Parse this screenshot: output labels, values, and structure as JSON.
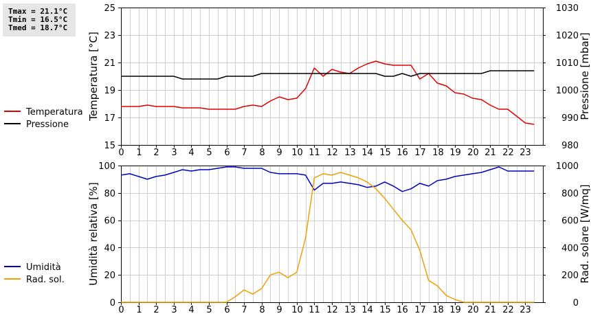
{
  "stats": {
    "tmax": "Tmax = 21.1°C",
    "tmin": "Tmin = 16.5°C",
    "tmed": "Tmed = 18.7°C"
  },
  "chart_data": [
    {
      "type": "line",
      "ylabel_left": "Temperatura [°C]",
      "ylabel_right": "Pressione [mbar]",
      "xlim": [
        0,
        24
      ],
      "ylim_left": [
        15,
        25
      ],
      "ylim_right": [
        980,
        1030
      ],
      "xticks": [
        0,
        1,
        2,
        3,
        4,
        5,
        6,
        7,
        8,
        9,
        10,
        11,
        12,
        13,
        14,
        15,
        16,
        17,
        18,
        19,
        20,
        21,
        22,
        23
      ],
      "yticks_left": [
        15,
        17,
        19,
        21,
        23,
        25
      ],
      "yticks_right": [
        980,
        990,
        1000,
        1010,
        1020,
        1030
      ],
      "grid": true,
      "legend_position": "left",
      "series": [
        {
          "name": "Temperatura",
          "axis": "left",
          "color": "#e00000",
          "x": [
            0,
            0.5,
            1,
            1.5,
            2,
            2.5,
            3,
            3.5,
            4,
            4.5,
            5,
            5.5,
            6,
            6.5,
            7,
            7.5,
            8,
            8.5,
            9,
            9.5,
            10,
            10.5,
            11,
            11.5,
            12,
            12.5,
            13,
            13.5,
            14,
            14.5,
            15,
            15.5,
            16,
            16.5,
            17,
            17.5,
            18,
            18.5,
            19,
            19.5,
            20,
            20.5,
            21,
            21.5,
            22,
            22.5,
            23,
            23.5
          ],
          "y": [
            17.8,
            17.8,
            17.8,
            17.9,
            17.8,
            17.8,
            17.8,
            17.7,
            17.7,
            17.7,
            17.6,
            17.6,
            17.6,
            17.6,
            17.8,
            17.9,
            17.8,
            18.2,
            18.5,
            18.3,
            18.4,
            19.1,
            20.6,
            20.0,
            20.5,
            20.3,
            20.2,
            20.6,
            20.9,
            21.1,
            20.9,
            20.8,
            20.8,
            20.8,
            19.8,
            20.2,
            19.5,
            19.3,
            18.8,
            18.7,
            18.4,
            18.3,
            17.9,
            17.6,
            17.6,
            17.1,
            16.6,
            16.5
          ]
        },
        {
          "name": "Pressione",
          "axis": "right",
          "color": "#000000",
          "x": [
            0,
            0.5,
            1,
            1.5,
            2,
            2.5,
            3,
            3.5,
            4,
            4.5,
            5,
            5.5,
            6,
            6.5,
            7,
            7.5,
            8,
            8.5,
            9,
            9.5,
            10,
            10.5,
            11,
            11.5,
            12,
            12.5,
            13,
            13.5,
            14,
            14.5,
            15,
            15.5,
            16,
            16.5,
            17,
            17.5,
            18,
            18.5,
            19,
            19.5,
            20,
            20.5,
            21,
            21.5,
            22,
            22.5,
            23,
            23.5
          ],
          "y": [
            1005,
            1005,
            1005,
            1005,
            1005,
            1005,
            1005,
            1004,
            1004,
            1004,
            1004,
            1004,
            1005,
            1005,
            1005,
            1005,
            1006,
            1006,
            1006,
            1006,
            1006,
            1006,
            1006,
            1006,
            1006,
            1006,
            1006,
            1006,
            1006,
            1006,
            1005,
            1005,
            1006,
            1005,
            1006,
            1006,
            1006,
            1006,
            1006,
            1006,
            1006,
            1006,
            1007,
            1007,
            1007,
            1007,
            1007,
            1007
          ]
        }
      ]
    },
    {
      "type": "line",
      "ylabel_left": "Umidità relativa [%]",
      "ylabel_right": "Rad. solare [W/mq]",
      "xlim": [
        0,
        24
      ],
      "ylim_left": [
        0,
        100
      ],
      "ylim_right": [
        0,
        1000
      ],
      "xticks": [
        0,
        1,
        2,
        3,
        4,
        5,
        6,
        7,
        8,
        9,
        10,
        11,
        12,
        13,
        14,
        15,
        16,
        17,
        18,
        19,
        20,
        21,
        22,
        23
      ],
      "yticks_left": [
        0,
        20,
        40,
        60,
        80,
        100
      ],
      "yticks_right": [
        0,
        200,
        400,
        600,
        800,
        1000
      ],
      "grid": true,
      "legend_position": "left",
      "series": [
        {
          "name": "Umidità",
          "axis": "left",
          "color": "#0000c0",
          "x": [
            0,
            0.5,
            1,
            1.5,
            2,
            2.5,
            3,
            3.5,
            4,
            4.5,
            5,
            5.5,
            6,
            6.5,
            7,
            7.5,
            8,
            8.5,
            9,
            9.5,
            10,
            10.5,
            11,
            11.5,
            12,
            12.5,
            13,
            13.5,
            14,
            14.5,
            15,
            15.5,
            16,
            16.5,
            17,
            17.5,
            18,
            18.5,
            19,
            19.5,
            20,
            20.5,
            21,
            21.5,
            22,
            22.5,
            23,
            23.5
          ],
          "y": [
            93,
            94,
            92,
            90,
            92,
            93,
            95,
            97,
            96,
            97,
            97,
            98,
            99,
            99,
            98,
            98,
            98,
            95,
            94,
            94,
            94,
            93,
            82,
            87,
            87,
            88,
            87,
            86,
            84,
            85,
            88,
            85,
            81,
            83,
            87,
            85,
            89,
            90,
            92,
            93,
            94,
            95,
            97,
            99,
            96,
            96,
            96,
            96
          ]
        },
        {
          "name": "Rad. sol.",
          "axis": "right",
          "color": "#f0a000",
          "x": [
            0,
            0.5,
            1,
            1.5,
            2,
            2.5,
            3,
            3.5,
            4,
            4.5,
            5,
            5.5,
            6,
            6.5,
            7,
            7.5,
            8,
            8.5,
            9,
            9.5,
            10,
            10.5,
            11,
            11.5,
            12,
            12.5,
            13,
            13.5,
            14,
            14.5,
            15,
            15.5,
            16,
            16.5,
            17,
            17.5,
            18,
            18.5,
            19,
            19.5,
            20,
            20.5,
            21,
            21.5,
            22,
            22.5,
            23,
            23.5
          ],
          "y": [
            0,
            0,
            0,
            0,
            0,
            0,
            0,
            0,
            0,
            0,
            0,
            0,
            0,
            40,
            90,
            60,
            100,
            200,
            220,
            180,
            220,
            470,
            910,
            940,
            930,
            950,
            930,
            910,
            880,
            830,
            760,
            680,
            600,
            530,
            380,
            160,
            120,
            50,
            20,
            0,
            0,
            0,
            0,
            0,
            0,
            0,
            0,
            0
          ]
        }
      ]
    }
  ]
}
